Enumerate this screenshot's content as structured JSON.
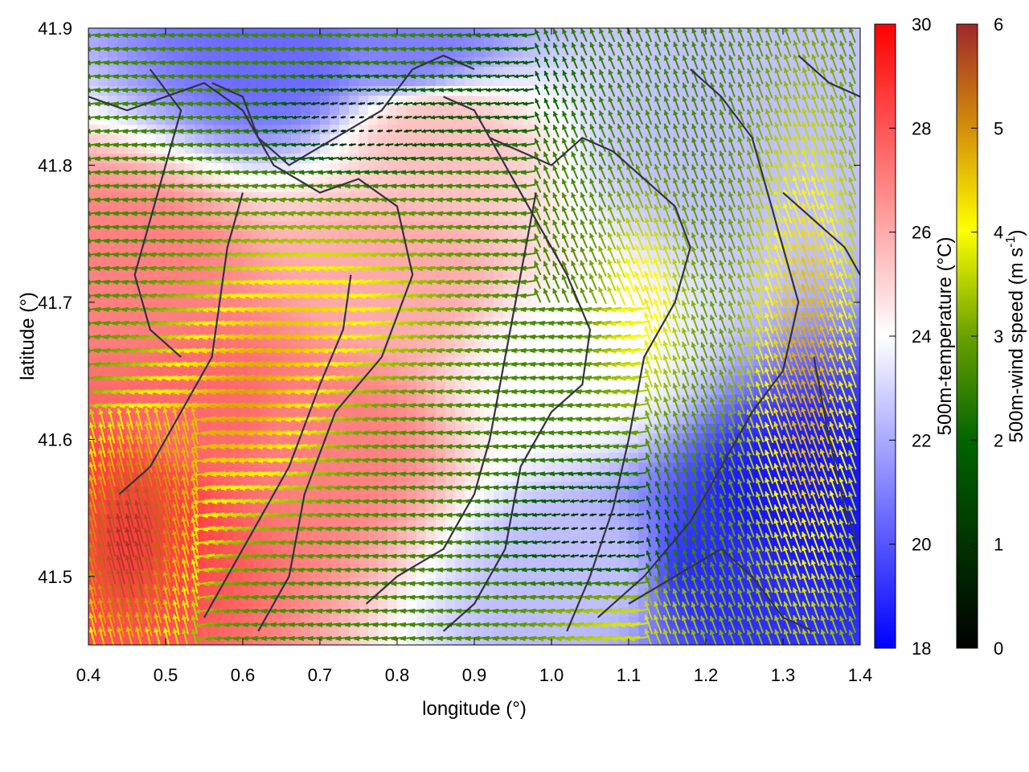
{
  "chart_data": {
    "type": "heatmap",
    "xlabel": "longitude (°)",
    "ylabel": "latitude (°)",
    "xlim": [
      0.4,
      1.4
    ],
    "ylim": [
      41.45,
      41.9
    ],
    "x_ticks": [
      "0.4",
      "0.5",
      "0.6",
      "0.7",
      "0.8",
      "0.9",
      "1.0",
      "1.1",
      "1.2",
      "1.3",
      "1.4"
    ],
    "y_ticks": [
      "41.5",
      "41.6",
      "41.7",
      "41.8",
      "41.9"
    ],
    "x_tick_values": [
      0.4,
      0.5,
      0.6,
      0.7,
      0.8,
      0.9,
      1.0,
      1.1,
      1.2,
      1.3,
      1.4
    ],
    "y_tick_values": [
      41.5,
      41.6,
      41.7,
      41.8,
      41.9
    ],
    "temperature_colorbar": {
      "label": "500m-temperature (°C)",
      "range": [
        18,
        30
      ],
      "ticks": [
        "18",
        "20",
        "22",
        "24",
        "26",
        "28",
        "30"
      ],
      "tick_values": [
        18,
        20,
        22,
        24,
        26,
        28,
        30
      ],
      "colors": [
        "#0000ff",
        "#ffffff",
        "#ff0000"
      ]
    },
    "wind_colorbar": {
      "label_main": "500m-wind speed (m s",
      "label_sup": "-1",
      "label_end": ")",
      "range": [
        0,
        6
      ],
      "ticks": [
        "0",
        "1",
        "2",
        "3",
        "4",
        "5",
        "6"
      ],
      "tick_values": [
        0,
        1,
        2,
        3,
        4,
        5,
        6
      ],
      "colors": [
        "#000000",
        "#006400",
        "#6aa000",
        "#ffff00",
        "#d4900a",
        "#a0282a"
      ]
    },
    "temperature_field_centers": [
      {
        "lon": 0.45,
        "lat": 41.55,
        "t": 28.5
      },
      {
        "lon": 0.55,
        "lat": 41.62,
        "t": 27.5
      },
      {
        "lon": 0.45,
        "lat": 41.72,
        "t": 27.0
      },
      {
        "lon": 0.7,
        "lat": 41.6,
        "t": 27.0
      },
      {
        "lon": 0.8,
        "lat": 41.72,
        "t": 26.0
      },
      {
        "lon": 0.85,
        "lat": 41.82,
        "t": 25.5
      },
      {
        "lon": 0.65,
        "lat": 41.88,
        "t": 20.5
      },
      {
        "lon": 0.82,
        "lat": 41.89,
        "t": 21.0
      },
      {
        "lon": 1.2,
        "lat": 41.82,
        "t": 22.5
      },
      {
        "lon": 1.32,
        "lat": 41.55,
        "t": 18.5
      },
      {
        "lon": 1.22,
        "lat": 41.5,
        "t": 19.0
      },
      {
        "lon": 1.05,
        "lat": 41.5,
        "t": 22.5
      },
      {
        "lon": 1.02,
        "lat": 41.65,
        "t": 24.0
      }
    ],
    "wind_grid": {
      "step_lon": 0.012,
      "step_lat": 0.01
    },
    "contours": [
      [
        [
          0.4,
          41.85
        ],
        [
          0.45,
          41.84
        ],
        [
          0.5,
          41.85
        ],
        [
          0.55,
          41.86
        ],
        [
          0.6,
          41.84
        ],
        [
          0.64,
          41.8
        ],
        [
          0.7,
          41.78
        ],
        [
          0.75,
          41.79
        ],
        [
          0.8,
          41.77
        ],
        [
          0.82,
          41.72
        ],
        [
          0.78,
          41.66
        ],
        [
          0.72,
          41.62
        ],
        [
          0.68,
          41.56
        ],
        [
          0.66,
          41.5
        ],
        [
          0.62,
          41.46
        ]
      ],
      [
        [
          0.48,
          41.87
        ],
        [
          0.52,
          41.84
        ],
        [
          0.5,
          41.8
        ],
        [
          0.48,
          41.76
        ],
        [
          0.46,
          41.72
        ],
        [
          0.48,
          41.68
        ],
        [
          0.52,
          41.66
        ]
      ],
      [
        [
          0.56,
          41.86
        ],
        [
          0.6,
          41.85
        ],
        [
          0.62,
          41.82
        ],
        [
          0.66,
          41.8
        ],
        [
          0.72,
          41.82
        ],
        [
          0.78,
          41.84
        ],
        [
          0.82,
          41.87
        ],
        [
          0.86,
          41.88
        ],
        [
          0.9,
          41.87
        ]
      ],
      [
        [
          0.6,
          41.78
        ],
        [
          0.58,
          41.74
        ],
        [
          0.57,
          41.7
        ],
        [
          0.56,
          41.66
        ],
        [
          0.52,
          41.62
        ],
        [
          0.48,
          41.58
        ],
        [
          0.44,
          41.56
        ]
      ],
      [
        [
          0.86,
          41.85
        ],
        [
          0.9,
          41.84
        ],
        [
          0.94,
          41.8
        ],
        [
          0.98,
          41.76
        ],
        [
          1.02,
          41.72
        ],
        [
          1.05,
          41.68
        ],
        [
          1.04,
          41.64
        ],
        [
          1.0,
          41.62
        ],
        [
          0.96,
          41.58
        ],
        [
          0.94,
          41.52
        ],
        [
          0.9,
          41.48
        ],
        [
          0.86,
          41.46
        ]
      ],
      [
        [
          0.92,
          41.82
        ],
        [
          0.96,
          41.81
        ],
        [
          1.0,
          41.8
        ],
        [
          1.04,
          41.82
        ],
        [
          1.08,
          41.81
        ],
        [
          1.12,
          41.79
        ],
        [
          1.16,
          41.77
        ],
        [
          1.18,
          41.74
        ],
        [
          1.16,
          41.7
        ],
        [
          1.12,
          41.66
        ],
        [
          1.1,
          41.6
        ],
        [
          1.08,
          41.55
        ],
        [
          1.05,
          41.5
        ],
        [
          1.02,
          41.46
        ]
      ],
      [
        [
          1.18,
          41.87
        ],
        [
          1.22,
          41.85
        ],
        [
          1.26,
          41.82
        ],
        [
          1.28,
          41.78
        ],
        [
          1.3,
          41.74
        ],
        [
          1.32,
          41.7
        ],
        [
          1.3,
          41.65
        ],
        [
          1.26,
          41.62
        ],
        [
          1.22,
          41.58
        ],
        [
          1.18,
          41.54
        ],
        [
          1.12,
          41.5
        ],
        [
          1.06,
          41.47
        ]
      ],
      [
        [
          1.32,
          41.88
        ],
        [
          1.36,
          41.86
        ],
        [
          1.4,
          41.85
        ]
      ],
      [
        [
          1.3,
          41.78
        ],
        [
          1.34,
          41.76
        ],
        [
          1.38,
          41.74
        ],
        [
          1.4,
          41.72
        ]
      ],
      [
        [
          1.34,
          41.66
        ],
        [
          1.36,
          41.6
        ],
        [
          1.38,
          41.55
        ],
        [
          1.4,
          41.52
        ]
      ],
      [
        [
          1.1,
          41.48
        ],
        [
          1.16,
          41.5
        ],
        [
          1.22,
          41.52
        ],
        [
          1.26,
          41.5
        ],
        [
          1.3,
          41.47
        ],
        [
          1.34,
          41.46
        ]
      ],
      [
        [
          0.55,
          41.47
        ],
        [
          0.6,
          41.52
        ],
        [
          0.66,
          41.58
        ],
        [
          0.7,
          41.64
        ],
        [
          0.73,
          41.68
        ],
        [
          0.74,
          41.72
        ]
      ],
      [
        [
          0.76,
          41.48
        ],
        [
          0.8,
          41.5
        ],
        [
          0.86,
          41.52
        ],
        [
          0.9,
          41.56
        ],
        [
          0.92,
          41.6
        ],
        [
          0.94,
          41.66
        ],
        [
          0.96,
          41.72
        ],
        [
          0.98,
          41.78
        ]
      ]
    ]
  }
}
